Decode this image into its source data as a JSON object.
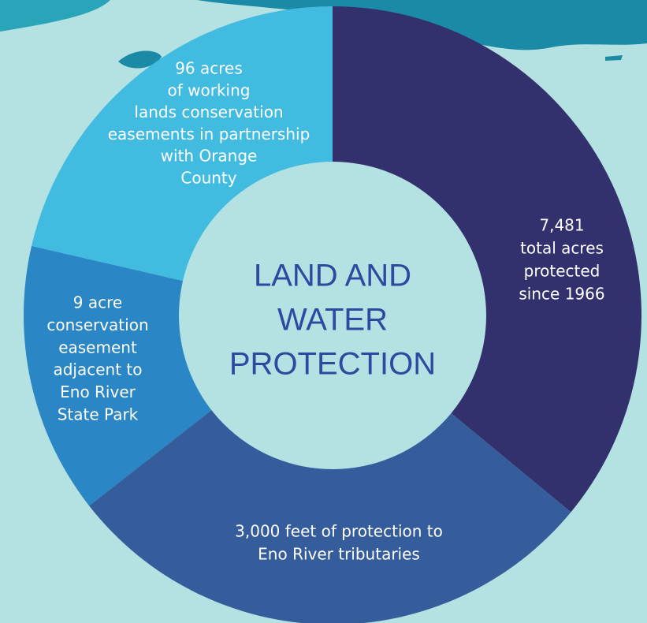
{
  "title": {
    "lines": [
      "LAND AND",
      "WATER",
      "PROTECTION"
    ]
  },
  "segments": [
    {
      "lines": [
        "7,481",
        "total acres",
        "protected",
        "since 1966"
      ]
    },
    {
      "lines": [
        "3,000 feet of protection to",
        "Eno River tributaries"
      ]
    },
    {
      "lines": [
        "9 acre",
        "conservation",
        "easement",
        "adjacent to",
        "Eno River",
        "State Park"
      ]
    },
    {
      "lines": [
        "96 acres",
        "of working",
        "lands conservation",
        "easements in partnership",
        "with Orange",
        "County"
      ]
    }
  ]
}
